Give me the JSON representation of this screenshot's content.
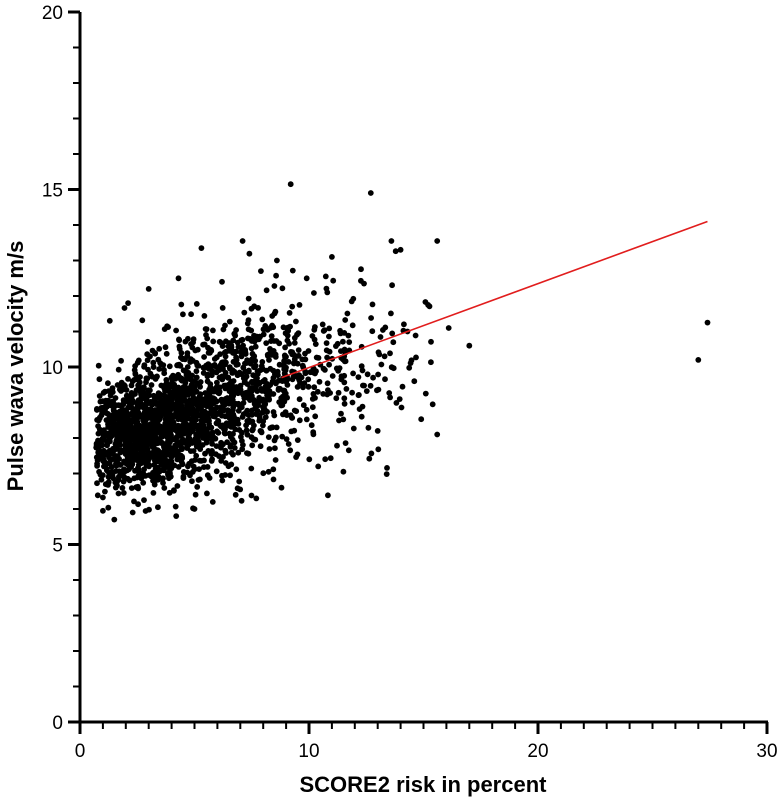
{
  "chart_data": {
    "type": "scatter",
    "xlabel": "SCORE2 risk in percent",
    "ylabel": "Pulse wava velocity m/s",
    "xlim": [
      0,
      30
    ],
    "ylim": [
      0,
      20
    ],
    "x_ticks": [
      "0",
      "10",
      "20",
      "30"
    ],
    "y_ticks": [
      "0",
      "5",
      "10",
      "15",
      "20"
    ],
    "x_minor_step": 1,
    "y_minor_step": 1,
    "grid": false,
    "legend": "none",
    "colors": {
      "points": "#000000",
      "trend": "#e11d1d",
      "axes": "#000000"
    },
    "trend_line": {
      "x": [
        8.8,
        27.4
      ],
      "y": [
        9.7,
        14.1
      ]
    },
    "series": [
      {
        "points": [
          [
            9.2,
            15.15
          ],
          [
            12.7,
            14.9
          ],
          [
            13.6,
            13.55
          ],
          [
            15.6,
            13.55
          ],
          [
            14.0,
            13.3
          ],
          [
            7.1,
            13.55
          ],
          [
            5.3,
            13.35
          ],
          [
            12.4,
            12.35
          ],
          [
            16.1,
            11.1
          ],
          [
            17.0,
            10.6
          ],
          [
            15.2,
            11.75
          ],
          [
            14.3,
            11.0
          ],
          [
            14.6,
            9.6
          ],
          [
            15.1,
            9.25
          ],
          [
            15.4,
            8.95
          ],
          [
            15.6,
            8.1
          ],
          [
            13.0,
            8.2
          ],
          [
            11.5,
            7.05
          ],
          [
            9.6,
            8.5
          ],
          [
            27.0,
            10.2
          ],
          [
            27.4,
            11.25
          ],
          [
            12.8,
            9.7
          ],
          [
            13.3,
            10.3
          ],
          [
            11.9,
            9.0
          ],
          [
            12.3,
            8.6
          ],
          [
            10.6,
            11.2
          ],
          [
            11.0,
            13.1
          ],
          [
            10.8,
            12.1
          ],
          [
            9.9,
            12.5
          ],
          [
            8.6,
            13.0
          ],
          [
            7.9,
            12.7
          ],
          [
            6.2,
            12.4
          ],
          [
            4.3,
            12.5
          ],
          [
            3.0,
            12.2
          ],
          [
            2.1,
            11.8
          ],
          [
            1.3,
            11.3
          ],
          [
            1.0,
            5.95
          ],
          [
            1.5,
            5.7
          ],
          [
            2.3,
            5.9
          ],
          [
            3.4,
            6.05
          ],
          [
            4.2,
            5.8
          ],
          [
            5.0,
            6.0
          ],
          [
            5.8,
            6.2
          ],
          [
            6.8,
            6.4
          ],
          [
            7.7,
            6.3
          ],
          [
            8.8,
            6.6
          ],
          [
            10.4,
            7.2
          ]
        ]
      }
    ],
    "cloud_clusters": [
      {
        "x_mean": 2.4,
        "x_sd": 1.05,
        "y_mean": 8.05,
        "y_sd": 0.78,
        "n": 700
      },
      {
        "x_mean": 4.4,
        "x_sd": 1.3,
        "y_mean": 8.65,
        "y_sd": 0.92,
        "n": 700
      },
      {
        "x_mean": 6.8,
        "x_sd": 1.55,
        "y_mean": 9.3,
        "y_sd": 1.05,
        "n": 450
      },
      {
        "x_mean": 9.8,
        "x_sd": 1.7,
        "y_mean": 9.85,
        "y_sd": 1.2,
        "n": 230
      },
      {
        "x_mean": 12.7,
        "x_sd": 1.5,
        "y_mean": 10.2,
        "y_sd": 1.15,
        "n": 55
      }
    ],
    "cloud_x_range": [
      0.7,
      17.0
    ],
    "cloud_y_range": [
      5.6,
      13.4
    ],
    "cloud_seed": 20240601
  }
}
